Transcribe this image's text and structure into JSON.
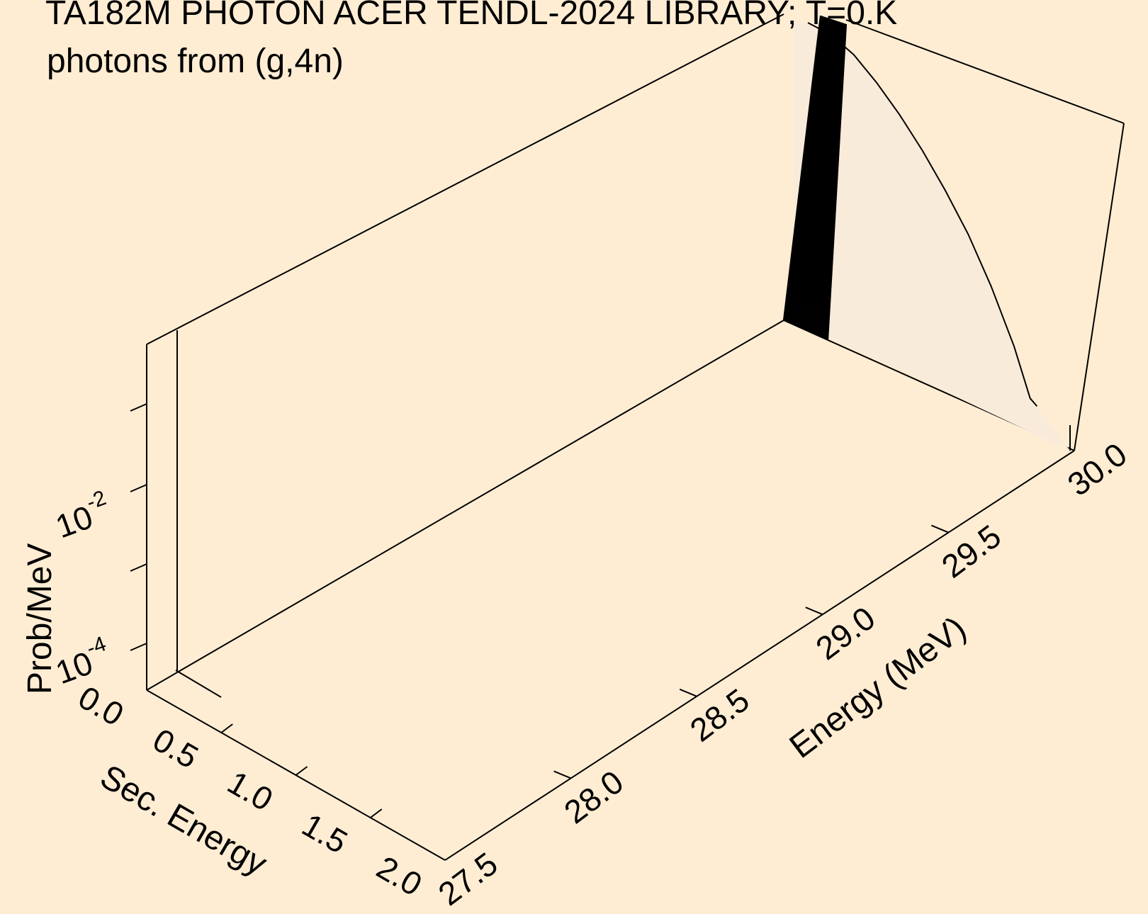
{
  "chart_data": {
    "type": "surface-3d",
    "title_line1": "TA182M PHOTON ACER TENDL-2024 LIBRARY; T=0.K",
    "title_line2": "photons from (g,4n)",
    "x_axis": {
      "label": "Energy (MeV)",
      "range": [
        27.5,
        30.0
      ],
      "ticks": [
        "27.5",
        "28.0",
        "28.5",
        "29.0",
        "29.5",
        "30.0"
      ]
    },
    "y_axis": {
      "label": "Sec. Energy",
      "range": [
        0.0,
        2.0
      ],
      "ticks": [
        "0.0",
        "0.5",
        "1.0",
        "1.5",
        "2.0"
      ]
    },
    "z_axis": {
      "label": "Prob/MeV",
      "scale": "log",
      "tick_base": "10",
      "tick_exponents": [
        "-4",
        "-2"
      ]
    },
    "curve_profile": [
      {
        "u": 0.0,
        "v": 1.0
      },
      {
        "u": 0.1,
        "v": 0.97
      },
      {
        "u": 0.2,
        "v": 0.92
      },
      {
        "u": 0.3,
        "v": 0.85
      },
      {
        "u": 0.4,
        "v": 0.77
      },
      {
        "u": 0.5,
        "v": 0.68
      },
      {
        "u": 0.6,
        "v": 0.58
      },
      {
        "u": 0.7,
        "v": 0.47
      },
      {
        "u": 0.8,
        "v": 0.34
      },
      {
        "u": 0.9,
        "v": 0.19
      },
      {
        "u": 0.97,
        "v": 0.06
      },
      {
        "u": 1.0,
        "v": 0.04
      }
    ],
    "colors": {
      "background": "#FFEDD3",
      "surface_fill": "#F9EBDA",
      "line": "#000000"
    }
  }
}
